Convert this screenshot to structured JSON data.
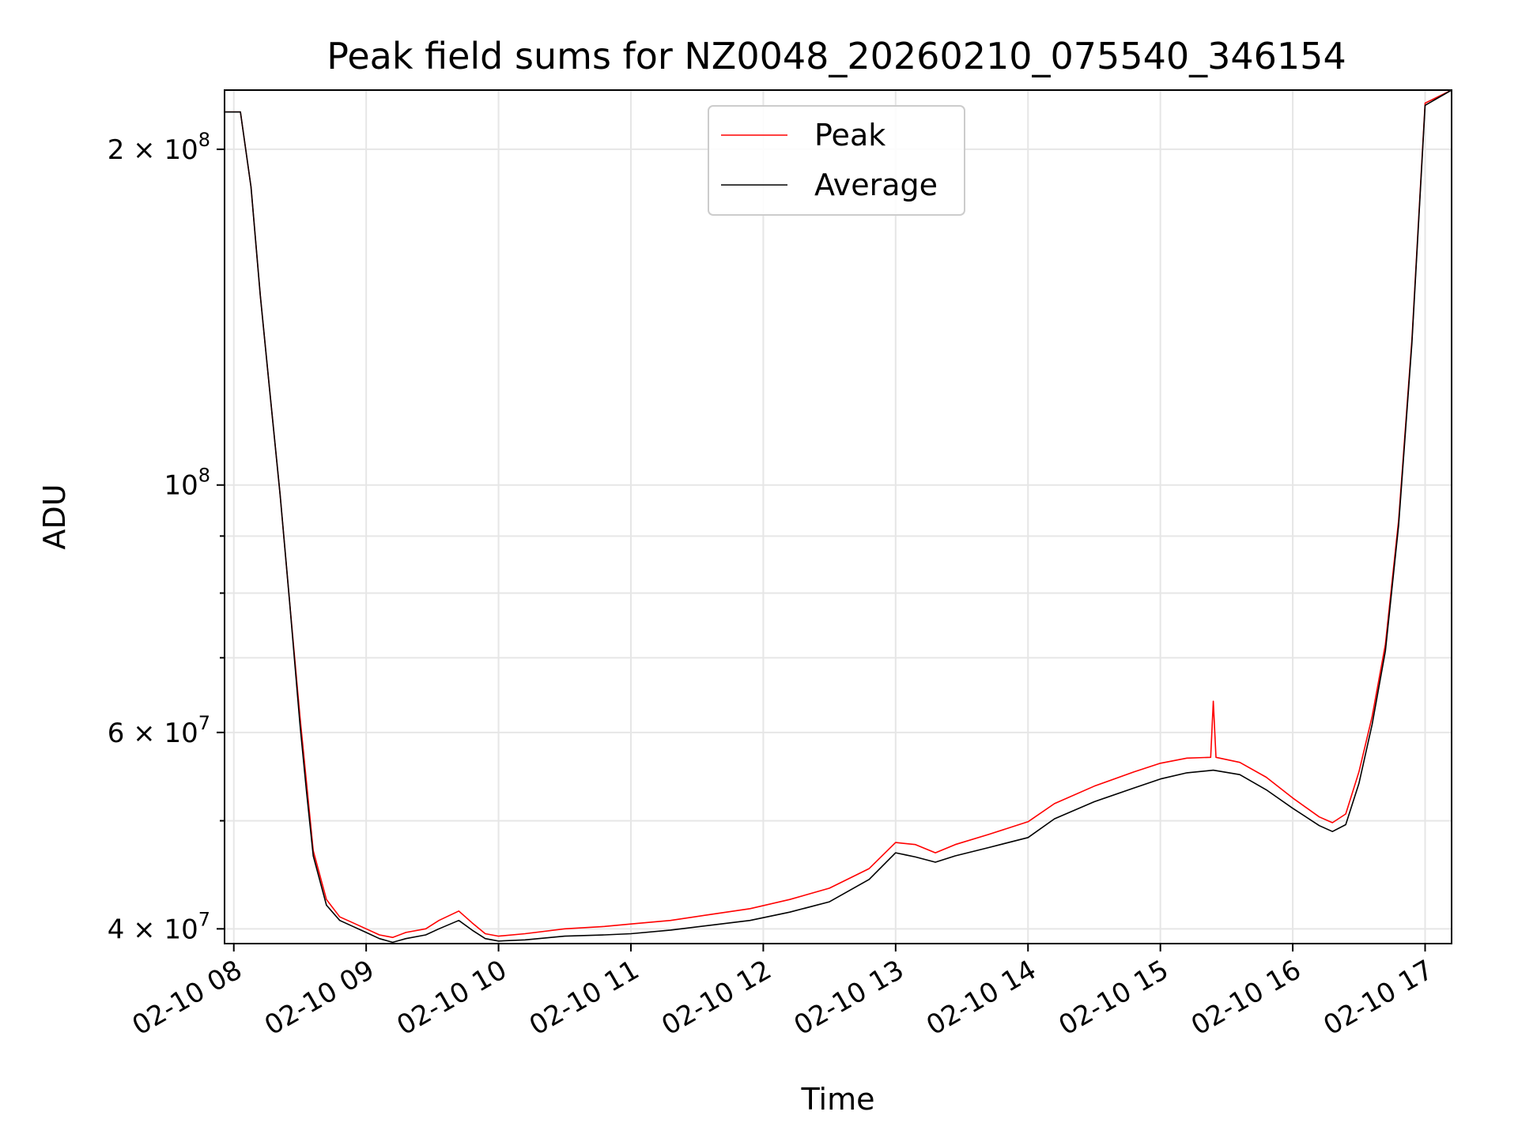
{
  "chart_data": {
    "type": "line",
    "title": "Peak field sums for NZ0048_20260210_075540_346154",
    "xlabel": "Time",
    "ylabel": "ADU",
    "yscale": "log",
    "ylim": [
      38800000,
      226000000
    ],
    "xlim": [
      7.93,
      17.2
    ],
    "grid": true,
    "legend_position": "upper center",
    "x_ticks": [
      {
        "value": 8,
        "label": "02-10 08"
      },
      {
        "value": 9,
        "label": "02-10 09"
      },
      {
        "value": 10,
        "label": "02-10 10"
      },
      {
        "value": 11,
        "label": "02-10 11"
      },
      {
        "value": 12,
        "label": "02-10 12"
      },
      {
        "value": 13,
        "label": "02-10 13"
      },
      {
        "value": 14,
        "label": "02-10 14"
      },
      {
        "value": 15,
        "label": "02-10 15"
      },
      {
        "value": 16,
        "label": "02-10 16"
      },
      {
        "value": 17,
        "label": "02-10 17"
      }
    ],
    "y_major_ticks": [
      {
        "value": 40000000,
        "base": "4 × 10",
        "exp": "7"
      },
      {
        "value": 60000000,
        "base": "6 × 10",
        "exp": "7"
      },
      {
        "value": 100000000,
        "base": "10",
        "exp": "8"
      },
      {
        "value": 200000000,
        "base": "2 × 10",
        "exp": "8"
      }
    ],
    "y_minor_ticks": [
      50000000,
      70000000,
      80000000,
      90000000
    ],
    "series": [
      {
        "name": "Peak",
        "color": "#ff0000",
        "x": [
          7.93,
          8.05,
          8.13,
          8.2,
          8.27,
          8.35,
          8.42,
          8.5,
          8.55,
          8.6,
          8.7,
          8.8,
          8.9,
          9.0,
          9.1,
          9.2,
          9.3,
          9.45,
          9.55,
          9.7,
          9.8,
          9.9,
          10.0,
          10.2,
          10.5,
          10.8,
          11.0,
          11.3,
          11.6,
          11.9,
          12.2,
          12.5,
          12.8,
          13.0,
          13.15,
          13.3,
          13.45,
          13.7,
          14.0,
          14.2,
          14.5,
          14.8,
          15.0,
          15.2,
          15.38,
          15.4,
          15.42,
          15.6,
          15.8,
          16.0,
          16.2,
          16.3,
          16.4,
          16.5,
          16.6,
          16.7,
          16.8,
          16.9,
          17.0,
          17.2
        ],
        "y": [
          216000000,
          216000000,
          185000000,
          148000000,
          122000000,
          98000000,
          79000000,
          62000000,
          54000000,
          47000000,
          42500000,
          41000000,
          40500000,
          40000000,
          39500000,
          39300000,
          39700000,
          40000000,
          40700000,
          41500000,
          40500000,
          39600000,
          39400000,
          39600000,
          40000000,
          40200000,
          40400000,
          40700000,
          41200000,
          41700000,
          42500000,
          43500000,
          45300000,
          47800000,
          47600000,
          46800000,
          47600000,
          48600000,
          49900000,
          51800000,
          53700000,
          55300000,
          56300000,
          56900000,
          57000000,
          64000000,
          57000000,
          56400000,
          54700000,
          52400000,
          50400000,
          49800000,
          50700000,
          55300000,
          62000000,
          72000000,
          93000000,
          135000000,
          220000000,
          226000000
        ]
      },
      {
        "name": "Average",
        "color": "#000000",
        "x": [
          7.93,
          8.05,
          8.13,
          8.2,
          8.27,
          8.35,
          8.42,
          8.5,
          8.55,
          8.6,
          8.7,
          8.8,
          8.9,
          9.0,
          9.1,
          9.2,
          9.3,
          9.45,
          9.55,
          9.7,
          9.8,
          9.9,
          10.0,
          10.2,
          10.5,
          10.8,
          11.0,
          11.3,
          11.6,
          11.9,
          12.2,
          12.5,
          12.8,
          13.0,
          13.15,
          13.3,
          13.45,
          13.7,
          14.0,
          14.2,
          14.5,
          14.8,
          15.0,
          15.2,
          15.4,
          15.6,
          15.8,
          16.0,
          16.2,
          16.3,
          16.4,
          16.5,
          16.6,
          16.7,
          16.8,
          16.9,
          17.0,
          17.2
        ],
        "y": [
          216000000,
          216000000,
          185000000,
          148000000,
          122000000,
          98000000,
          79000000,
          61000000,
          53000000,
          46500000,
          42000000,
          40700000,
          40200000,
          39700000,
          39200000,
          38900000,
          39200000,
          39500000,
          40000000,
          40700000,
          39900000,
          39200000,
          39000000,
          39100000,
          39400000,
          39500000,
          39600000,
          39900000,
          40300000,
          40700000,
          41400000,
          42300000,
          44300000,
          46800000,
          46400000,
          45900000,
          46500000,
          47300000,
          48300000,
          50200000,
          52000000,
          53500000,
          54500000,
          55200000,
          55500000,
          55000000,
          53300000,
          51300000,
          49500000,
          48900000,
          49600000,
          54000000,
          61000000,
          71000000,
          92000000,
          134000000,
          219000000,
          226000000
        ]
      }
    ]
  }
}
